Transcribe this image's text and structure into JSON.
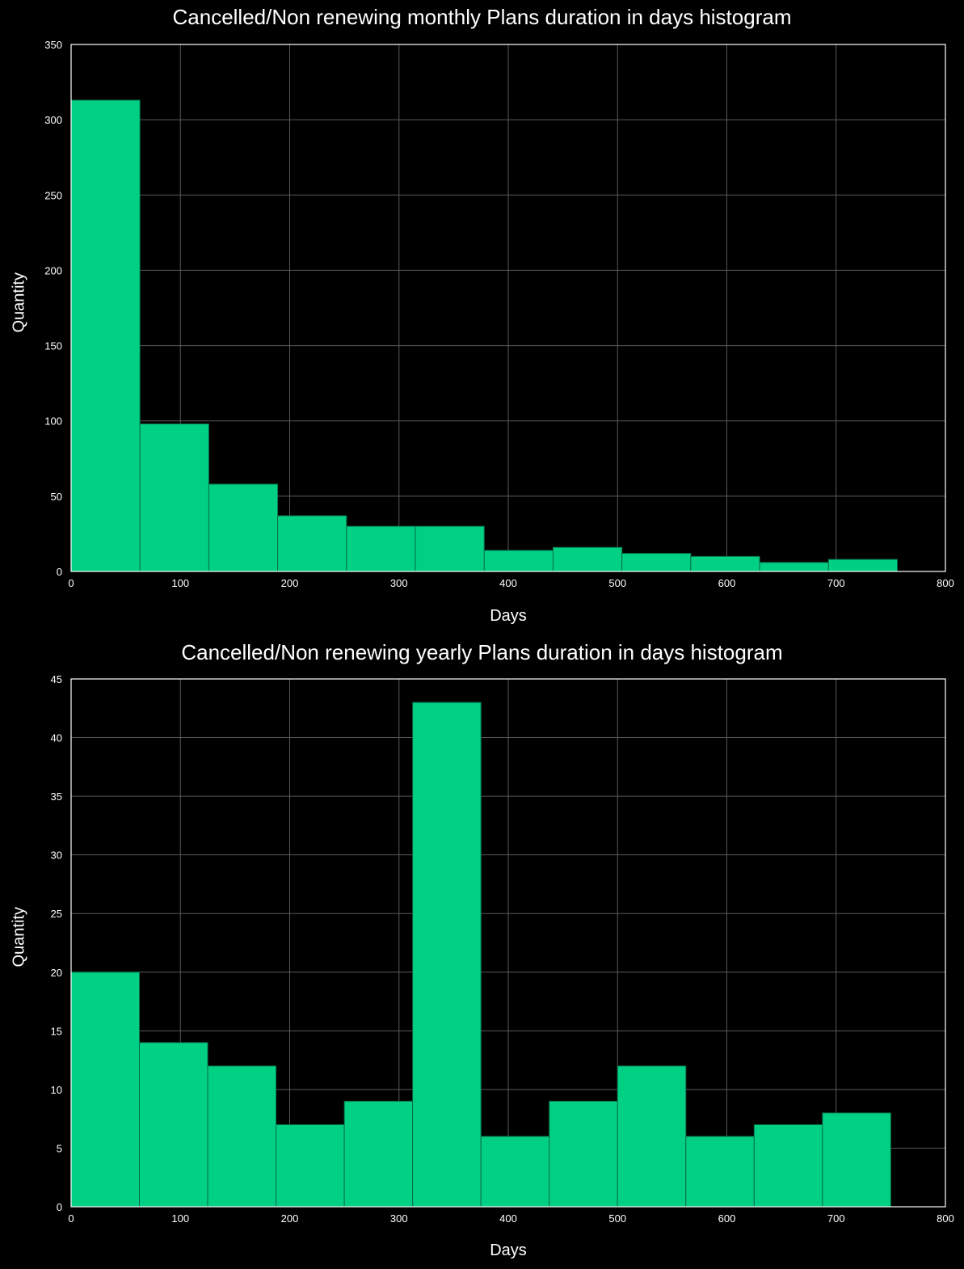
{
  "colors": {
    "bar": "#00d084",
    "bar_edge": "#0a6e4a",
    "grid": "#5a5a5a",
    "axes": "#ffffff",
    "background": "#000000"
  },
  "chart_data": [
    {
      "type": "bar",
      "title": "Cancelled/Non renewing monthly Plans duration in days histogram",
      "xlabel": "Days",
      "ylabel": "Quantity",
      "xlim": [
        0,
        800
      ],
      "ylim": [
        0,
        350
      ],
      "xticks": [
        "0",
        "100",
        "200",
        "300",
        "400",
        "500",
        "600",
        "700",
        "800"
      ],
      "yticks": [
        "0",
        "50",
        "100",
        "150",
        "200",
        "250",
        "300",
        "350"
      ],
      "grid": true,
      "bin_edges": [
        0,
        63,
        126,
        189,
        252,
        315,
        378,
        441,
        504,
        567,
        630,
        693,
        756
      ],
      "values": [
        313,
        98,
        58,
        37,
        30,
        30,
        14,
        16,
        12,
        10,
        6,
        8
      ]
    },
    {
      "type": "bar",
      "title": "Cancelled/Non renewing yearly Plans duration in days histogram",
      "xlabel": "Days",
      "ylabel": "Quantity",
      "xlim": [
        0,
        800
      ],
      "ylim": [
        0,
        45
      ],
      "xticks": [
        "0",
        "100",
        "200",
        "300",
        "400",
        "500",
        "600",
        "700",
        "800"
      ],
      "yticks": [
        "0",
        "5",
        "10",
        "15",
        "20",
        "25",
        "30",
        "35",
        "40",
        "45"
      ],
      "grid": true,
      "bin_edges": [
        0,
        62.5,
        125,
        187.5,
        250,
        312.5,
        375,
        437.5,
        500,
        562.5,
        625,
        687.5,
        750
      ],
      "values": [
        20,
        14,
        12,
        7,
        9,
        43,
        6,
        9,
        12,
        6,
        7,
        8
      ]
    }
  ]
}
